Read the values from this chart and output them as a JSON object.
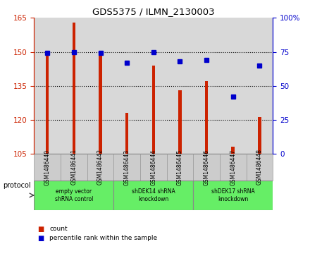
{
  "title": "GDS5375 / ILMN_2130003",
  "samples": [
    "GSM1486440",
    "GSM1486441",
    "GSM1486442",
    "GSM1486443",
    "GSM1486444",
    "GSM1486445",
    "GSM1486446",
    "GSM1486447",
    "GSM1486448"
  ],
  "counts": [
    149,
    163,
    149,
    123,
    144,
    133,
    137,
    108,
    121
  ],
  "percentiles": [
    74,
    75,
    74,
    67,
    75,
    68,
    69,
    42,
    65
  ],
  "ylim_left": [
    105,
    165
  ],
  "ylim_right": [
    0,
    100
  ],
  "yticks_left": [
    105,
    120,
    135,
    150,
    165
  ],
  "yticks_right": [
    0,
    25,
    50,
    75,
    100
  ],
  "bar_color": "#cc2200",
  "dot_color": "#0000cc",
  "group_configs": [
    [
      0,
      2,
      "empty vector\nshRNA control"
    ],
    [
      3,
      5,
      "shDEK14 shRNA\nknockdown"
    ],
    [
      6,
      8,
      "shDEK17 shRNA\nknockdown"
    ]
  ],
  "group_color": "#66ee66",
  "sample_box_color": "#cccccc",
  "legend_count_label": "count",
  "legend_pct_label": "percentile rank within the sample",
  "protocol_label": "protocol",
  "bg_color": "#ffffff",
  "bar_width": 0.12
}
